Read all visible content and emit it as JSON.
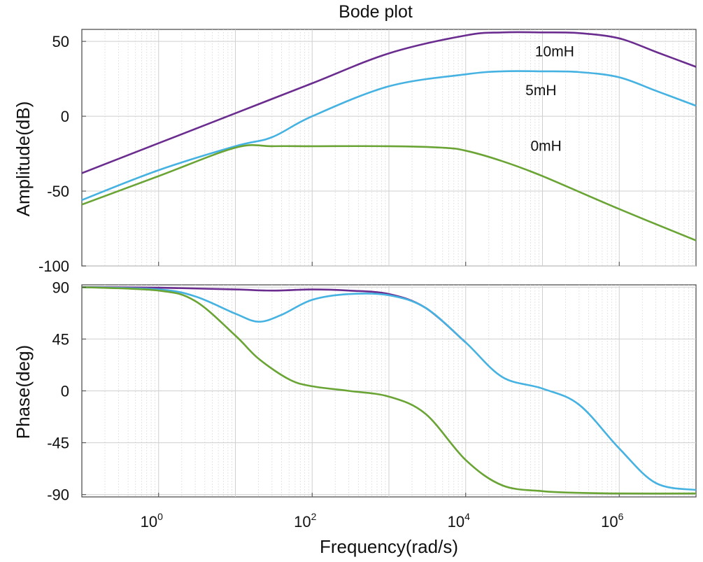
{
  "chart_data": {
    "type": "line",
    "title": "Bode plot",
    "xlabel": "Frequency(rad/s)",
    "xscale": "log",
    "xlim": [
      0.1,
      10000000
    ],
    "xticks": [
      {
        "value": 1,
        "base": "10",
        "exp": "0"
      },
      {
        "value": 100,
        "base": "10",
        "exp": "2"
      },
      {
        "value": 10000,
        "base": "10",
        "exp": "4"
      },
      {
        "value": 1000000,
        "base": "10",
        "exp": "6"
      }
    ],
    "grid": true,
    "panels": [
      {
        "id": "magnitude",
        "ylabel": "Amplitude(dB)",
        "ylim": [
          -100,
          58
        ],
        "yticks": [
          50,
          0,
          -50,
          -100
        ],
        "ytick_labels": [
          "50",
          "0",
          "-50",
          "-100"
        ],
        "series": [
          {
            "name": "10mH",
            "color": "#6a2c8e",
            "x": [
              0.1,
              1,
              10,
              100,
              1000,
              10000,
              30000,
              100000,
              300000,
              1000000,
              3000000,
              10000000
            ],
            "y": [
              -38,
              -18,
              2,
              22,
              42,
              54,
              56,
              56,
              55.5,
              52,
              43,
              33
            ]
          },
          {
            "name": "5mH",
            "color": "#45b2e2",
            "x": [
              0.1,
              1,
              10,
              30,
              100,
              1000,
              10000,
              30000,
              100000,
              300000,
              1000000,
              3000000,
              10000000
            ],
            "y": [
              -56,
              -36,
              -20,
              -14,
              0,
              20,
              28,
              30,
              30,
              29.5,
              26,
              17,
              7
            ]
          },
          {
            "name": "0mH",
            "color": "#6aa435",
            "x": [
              0.1,
              1,
              10,
              30,
              100,
              1000,
              5000,
              10000,
              30000,
              100000,
              1000000,
              10000000
            ],
            "y": [
              -59,
              -40,
              -21,
              -20,
              -20,
              -20,
              -21,
              -23,
              -30,
              -40,
              -62,
              -83
            ]
          }
        ],
        "annotations": [
          {
            "text": "10mH",
            "x": 80000,
            "y": 40
          },
          {
            "text": "5mH",
            "x": 60000,
            "y": 14
          },
          {
            "text": "0mH",
            "x": 70000,
            "y": -23
          }
        ]
      },
      {
        "id": "phase",
        "ylabel": "Phase(deg)",
        "ylim": [
          -92,
          92
        ],
        "yticks": [
          90,
          45,
          0,
          -45,
          -90
        ],
        "ytick_labels": [
          "90",
          "45",
          "0",
          "-45",
          "-90"
        ],
        "series": [
          {
            "name": "10mH",
            "color": "#6a2c8e",
            "x": [
              0.1,
              1,
              10,
              30,
              100,
              300,
              1000,
              3000,
              10000
            ],
            "y": [
              90,
              89.5,
              88,
              87,
              88,
              87,
              84,
              72,
              42
            ]
          },
          {
            "name": "5mH",
            "color": "#45b2e2",
            "x": [
              0.1,
              1,
              3,
              10,
              20,
              40,
              100,
              300,
              1000,
              3000,
              10000,
              30000,
              100000,
              300000,
              1000000,
              3000000,
              10000000
            ],
            "y": [
              90,
              88,
              82,
              67,
              60,
              66,
              79,
              84,
              83,
              72,
              42,
              12,
              2,
              -12,
              -50,
              -80,
              -86
            ]
          },
          {
            "name": "0mH",
            "color": "#6aa435",
            "x": [
              0.1,
              1,
              3,
              10,
              20,
              50,
              100,
              300,
              1000,
              3000,
              10000,
              30000,
              100000,
              300000,
              1000000,
              10000000
            ],
            "y": [
              90,
              87,
              78,
              48,
              28,
              10,
              4,
              0,
              -5,
              -20,
              -60,
              -82,
              -87,
              -88.5,
              -89,
              -89
            ]
          }
        ],
        "annotations": []
      }
    ]
  }
}
